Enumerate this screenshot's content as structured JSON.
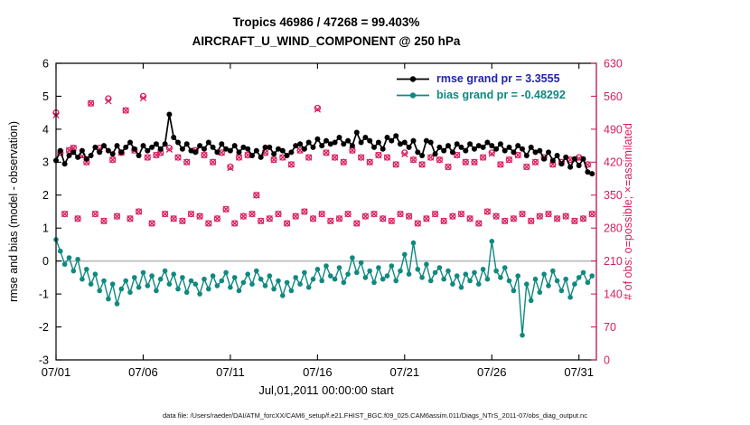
{
  "footer": {
    "text": "data file: /Users/raeder/DAI/ATM_forcXX/CAM6_setup/f.e21.FHIST_BGC.f09_025.CAM6assim.011/Diags_NTrS_2011-07/obs_diag_output.nc"
  },
  "chart_data": {
    "type": "line",
    "title": "Tropics 46986 / 47268 = 99.403%",
    "subtitle": "AIRCRAFT_U_WIND_COMPONENT @ 250 hPa",
    "xlabel": "Jul,01,2011 00:00:00 start",
    "ylabel_left": "rmse and bias (model - observation)",
    "ylabel_right": "# of obs: o=possible; ×=assimilated",
    "xlim_days": [
      0,
      31
    ],
    "ylim_left": [
      -3,
      6
    ],
    "ylim_right": [
      0,
      630
    ],
    "grid": false,
    "xticks": {
      "days": [
        0,
        5,
        10,
        15,
        20,
        25,
        30
      ],
      "labels": [
        "07/01",
        "07/06",
        "07/11",
        "07/16",
        "07/21",
        "07/26",
        "07/31"
      ]
    },
    "yticks_left": [
      -3,
      -2,
      -1,
      0,
      1,
      2,
      3,
      4,
      5,
      6
    ],
    "yticks_right": [
      0,
      70,
      140,
      210,
      280,
      350,
      420,
      490,
      560,
      630
    ],
    "x": {
      "start_day": 0,
      "step_days": 0.25,
      "count": 124
    },
    "zero_line": {
      "y": 0,
      "color": "#b8b8b8"
    },
    "stats": {
      "region": "Tropics",
      "assimilated": 46986,
      "possible": 47268,
      "percent": 99.403
    },
    "legend": {
      "position": "top-right",
      "entries": [
        {
          "label": "rmse grand pr = 3.3555",
          "text_color": "#2222b2",
          "line_color": "#000000"
        },
        {
          "label": "bias grand pr = -0.48292",
          "text_color": "#108980",
          "line_color": "#108980"
        }
      ]
    },
    "series": [
      {
        "name": "rmse",
        "axis": "left",
        "color": "#000000",
        "marker": "filled-circle",
        "grand_pr": 3.3555,
        "values": [
          3.05,
          3.35,
          2.95,
          3.2,
          3.3,
          3.15,
          3.35,
          3.1,
          3.2,
          3.45,
          3.3,
          3.5,
          3.35,
          3.25,
          3.5,
          3.3,
          3.45,
          3.6,
          3.4,
          3.2,
          3.5,
          3.35,
          3.45,
          3.55,
          3.4,
          3.55,
          4.45,
          3.75,
          3.6,
          3.4,
          3.55,
          3.35,
          3.3,
          3.5,
          3.4,
          3.6,
          3.45,
          3.3,
          3.55,
          3.4,
          3.35,
          3.5,
          3.3,
          3.45,
          3.4,
          3.2,
          3.35,
          3.15,
          3.45,
          3.45,
          3.25,
          3.4,
          3.35,
          3.2,
          3.3,
          3.5,
          3.55,
          3.4,
          3.6,
          3.45,
          3.7,
          3.5,
          3.65,
          3.55,
          3.6,
          3.75,
          3.55,
          3.65,
          3.5,
          3.9,
          3.6,
          3.75,
          3.65,
          3.45,
          3.6,
          3.4,
          3.75,
          3.65,
          3.8,
          3.55,
          3.6,
          3.45,
          3.65,
          3.3,
          3.2,
          3.65,
          3.6,
          3.25,
          3.45,
          3.35,
          3.5,
          3.3,
          3.55,
          3.45,
          3.35,
          3.55,
          3.4,
          3.5,
          3.45,
          3.6,
          3.5,
          3.4,
          3.55,
          3.35,
          3.45,
          3.3,
          3.5,
          3.4,
          3.2,
          3.45,
          3.3,
          3.35,
          3.1,
          3.3,
          3.05,
          3.2,
          2.95,
          3.15,
          2.85,
          3.1,
          2.9,
          3.1,
          2.7,
          2.65
        ]
      },
      {
        "name": "bias",
        "axis": "left",
        "color": "#108980",
        "marker": "filled-circle",
        "grand_pr": -0.48292,
        "values": [
          0.65,
          0.3,
          -0.1,
          0.1,
          -0.3,
          0.05,
          -0.55,
          -0.25,
          -0.7,
          -0.4,
          -0.9,
          -0.6,
          -1.15,
          -0.7,
          -1.3,
          -0.85,
          -0.6,
          -0.95,
          -0.5,
          -0.8,
          -0.35,
          -0.75,
          -0.45,
          -0.9,
          -0.55,
          -0.3,
          -0.7,
          -0.4,
          -0.85,
          -0.5,
          -0.95,
          -0.6,
          -0.7,
          -1.0,
          -0.55,
          -0.85,
          -0.45,
          -0.75,
          -0.6,
          -0.35,
          -0.8,
          -0.5,
          -0.9,
          -0.65,
          -0.4,
          -0.7,
          -0.3,
          -0.55,
          -0.75,
          -0.45,
          -0.85,
          -0.6,
          -1.05,
          -0.65,
          -0.9,
          -0.5,
          -0.7,
          -0.35,
          -0.8,
          -0.55,
          -0.25,
          -0.6,
          -0.15,
          -0.45,
          -0.55,
          -0.2,
          -0.65,
          -0.4,
          0.1,
          -0.35,
          -0.05,
          -0.5,
          -0.3,
          -0.65,
          -0.2,
          -0.55,
          -0.45,
          -0.15,
          -0.6,
          -0.3,
          0.2,
          -0.4,
          0.55,
          -0.25,
          -0.5,
          -0.1,
          -0.6,
          -0.35,
          -0.2,
          -0.55,
          -0.3,
          -0.7,
          -0.45,
          -0.8,
          -0.4,
          -0.6,
          -0.35,
          -0.7,
          -0.25,
          -0.55,
          0.6,
          -0.3,
          -0.5,
          -0.2,
          -0.6,
          -0.9,
          -0.45,
          -2.25,
          -0.7,
          -1.2,
          -0.55,
          -0.95,
          -0.4,
          -0.75,
          -0.3,
          -0.6,
          -0.9,
          -0.55,
          -1.1,
          -0.7,
          -0.5,
          -0.35,
          -0.65,
          -0.45
        ]
      },
      {
        "name": "obs_possible",
        "axis": "right",
        "color": "#d81e5f",
        "marker": "o",
        "values": [
          525,
          440,
          310,
          445,
          450,
          300,
          435,
          420,
          545,
          310,
          450,
          295,
          555,
          425,
          305,
          440,
          530,
          300,
          445,
          315,
          560,
          430,
          290,
          435,
          440,
          310,
          450,
          300,
          430,
          295,
          420,
          310,
          445,
          305,
          435,
          290,
          420,
          300,
          440,
          320,
          410,
          290,
          430,
          305,
          435,
          310,
          350,
          295,
          440,
          300,
          425,
          310,
          430,
          290,
          415,
          305,
          445,
          315,
          430,
          300,
          535,
          310,
          440,
          295,
          430,
          300,
          420,
          310,
          445,
          290,
          430,
          305,
          420,
          310,
          435,
          300,
          430,
          295,
          415,
          310,
          440,
          305,
          425,
          290,
          415,
          300,
          430,
          310,
          425,
          295,
          410,
          305,
          435,
          310,
          420,
          300,
          420,
          290,
          430,
          315,
          440,
          305,
          415,
          295,
          425,
          300,
          435,
          310,
          410,
          295,
          420,
          305,
          430,
          310,
          415,
          300,
          420,
          305,
          425,
          295,
          430,
          300,
          415,
          310
        ]
      },
      {
        "name": "obs_assimilated",
        "axis": "right",
        "color": "#d81e5f",
        "marker": "x",
        "values": [
          520,
          440,
          310,
          445,
          450,
          300,
          433,
          420,
          545,
          310,
          448,
          295,
          550,
          425,
          305,
          440,
          530,
          300,
          445,
          315,
          556,
          430,
          290,
          435,
          440,
          310,
          447,
          300,
          430,
          295,
          420,
          310,
          445,
          305,
          435,
          290,
          420,
          300,
          440,
          320,
          408,
          290,
          430,
          305,
          435,
          310,
          350,
          295,
          440,
          300,
          425,
          310,
          430,
          290,
          415,
          305,
          445,
          315,
          430,
          300,
          532,
          310,
          440,
          295,
          430,
          300,
          420,
          310,
          445,
          290,
          430,
          305,
          420,
          310,
          435,
          300,
          430,
          295,
          415,
          310,
          437,
          305,
          425,
          290,
          415,
          300,
          430,
          310,
          425,
          295,
          410,
          305,
          435,
          310,
          420,
          300,
          420,
          290,
          430,
          315,
          438,
          305,
          415,
          295,
          425,
          300,
          435,
          310,
          410,
          295,
          420,
          305,
          430,
          310,
          415,
          300,
          420,
          305,
          425,
          295,
          428,
          300,
          415,
          310
        ]
      }
    ]
  }
}
